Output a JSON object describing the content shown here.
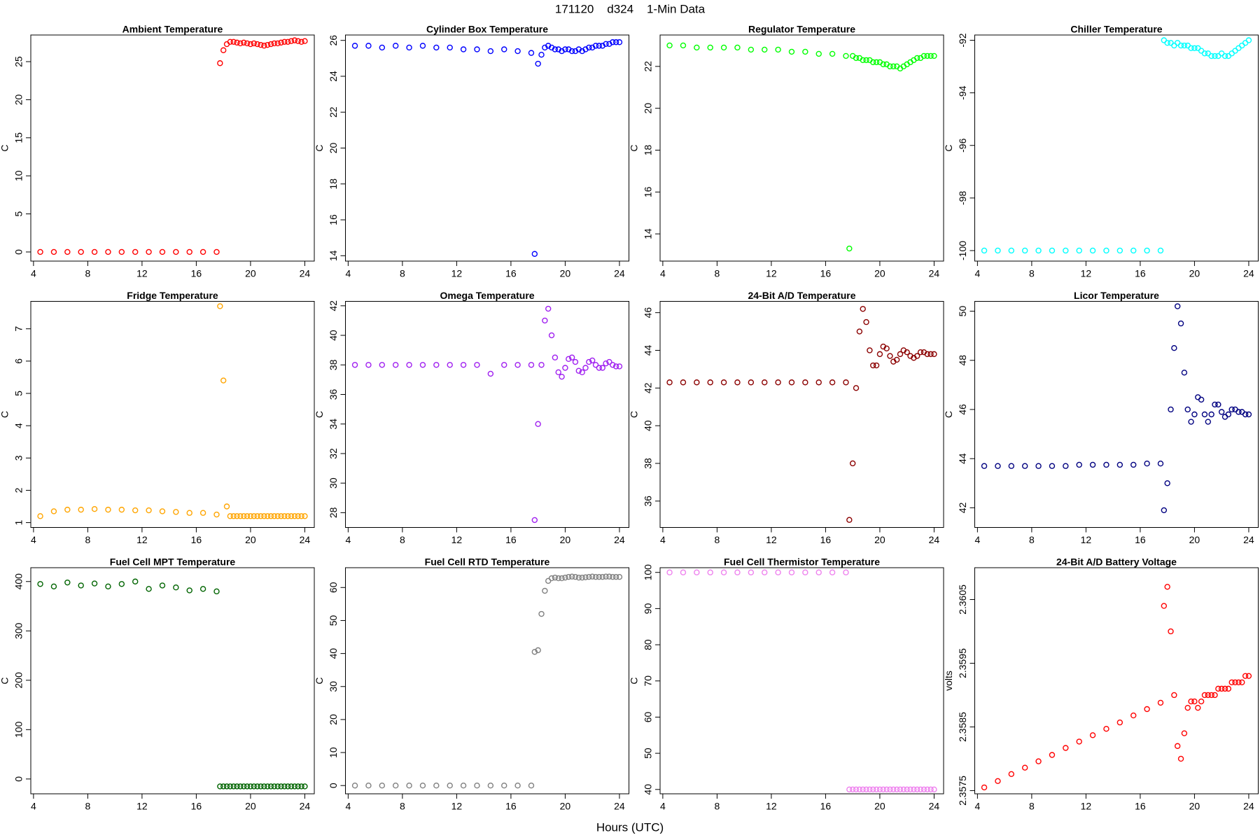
{
  "title": "171120    d324    1-Min Data",
  "x_label": "Hours (UTC)",
  "chart_data": [
    {
      "type": "scatter",
      "title": "Ambient Temperature",
      "ylabel": "C",
      "color": "#ff0000",
      "x": [
        4.5,
        5.5,
        6.5,
        7.5,
        8.5,
        9.5,
        10.5,
        11.5,
        12.5,
        13.5,
        14.5,
        15.5,
        16.5,
        17.5,
        17.75,
        18,
        18.25,
        18.5,
        18.75,
        19,
        19.25,
        19.5,
        19.75,
        20,
        20.25,
        20.5,
        20.75,
        21,
        21.25,
        21.5,
        21.75,
        22,
        22.25,
        22.5,
        22.75,
        23,
        23.25,
        23.5,
        23.75,
        24
      ],
      "values": [
        0,
        0,
        0,
        0,
        0,
        0,
        0,
        0,
        0,
        0,
        0,
        0,
        0,
        0,
        24.8,
        26.5,
        27.3,
        27.6,
        27.6,
        27.5,
        27.4,
        27.5,
        27.4,
        27.3,
        27.4,
        27.3,
        27.2,
        27.1,
        27.2,
        27.3,
        27.4,
        27.4,
        27.5,
        27.6,
        27.6,
        27.7,
        27.8,
        27.7,
        27.6,
        27.7
      ],
      "xlim": [
        3.8,
        24.7
      ],
      "xticks": [
        4,
        8,
        12,
        16,
        20,
        24
      ],
      "ylim": [
        -1.2,
        28.5
      ],
      "yticks": [
        0,
        5,
        10,
        15,
        20,
        25
      ]
    },
    {
      "type": "scatter",
      "title": "Cylinder Box Temperature",
      "ylabel": "C",
      "color": "#0000ff",
      "x": [
        4.5,
        5.5,
        6.5,
        7.5,
        8.5,
        9.5,
        10.5,
        11.5,
        12.5,
        13.5,
        14.5,
        15.5,
        16.5,
        17.5,
        17.75,
        18,
        18.25,
        18.5,
        18.75,
        19,
        19.25,
        19.5,
        19.75,
        20,
        20.25,
        20.5,
        20.75,
        21,
        21.25,
        21.5,
        21.75,
        22,
        22.25,
        22.5,
        22.75,
        23,
        23.25,
        23.5,
        23.75,
        24
      ],
      "values": [
        25.7,
        25.7,
        25.6,
        25.7,
        25.6,
        25.7,
        25.6,
        25.6,
        25.5,
        25.5,
        25.4,
        25.5,
        25.4,
        25.3,
        14.1,
        24.7,
        25.2,
        25.6,
        25.7,
        25.6,
        25.5,
        25.5,
        25.4,
        25.5,
        25.5,
        25.4,
        25.4,
        25.5,
        25.4,
        25.5,
        25.6,
        25.6,
        25.7,
        25.7,
        25.7,
        25.8,
        25.8,
        25.9,
        25.9,
        25.9
      ],
      "xlim": [
        3.8,
        24.7
      ],
      "xticks": [
        4,
        8,
        12,
        16,
        20,
        24
      ],
      "ylim": [
        13.7,
        26.3
      ],
      "yticks": [
        14,
        16,
        18,
        20,
        22,
        24,
        26
      ]
    },
    {
      "type": "scatter",
      "title": "Regulator Temperature",
      "ylabel": "C",
      "color": "#00ff00",
      "x": [
        4.5,
        5.5,
        6.5,
        7.5,
        8.5,
        9.5,
        10.5,
        11.5,
        12.5,
        13.5,
        14.5,
        15.5,
        16.5,
        17.5,
        17.75,
        18,
        18.25,
        18.5,
        18.75,
        19,
        19.25,
        19.5,
        19.75,
        20,
        20.25,
        20.5,
        20.75,
        21,
        21.25,
        21.5,
        21.75,
        22,
        22.25,
        22.5,
        22.75,
        23,
        23.25,
        23.5,
        23.75,
        24
      ],
      "values": [
        23.0,
        23.0,
        22.9,
        22.9,
        22.9,
        22.9,
        22.8,
        22.8,
        22.8,
        22.7,
        22.7,
        22.6,
        22.6,
        22.5,
        13.3,
        22.5,
        22.4,
        22.4,
        22.3,
        22.3,
        22.3,
        22.2,
        22.2,
        22.2,
        22.1,
        22.1,
        22.0,
        22.0,
        22.0,
        21.9,
        22.0,
        22.1,
        22.2,
        22.3,
        22.4,
        22.4,
        22.5,
        22.5,
        22.5,
        22.5
      ],
      "xlim": [
        3.8,
        24.7
      ],
      "xticks": [
        4,
        8,
        12,
        16,
        20,
        24
      ],
      "ylim": [
        12.7,
        23.5
      ],
      "yticks": [
        14,
        16,
        18,
        20,
        22
      ]
    },
    {
      "type": "scatter",
      "title": "Chiller Temperature",
      "ylabel": "C",
      "color": "#00ffff",
      "x": [
        4.5,
        5.5,
        6.5,
        7.5,
        8.5,
        9.5,
        10.5,
        11.5,
        12.5,
        13.5,
        14.5,
        15.5,
        16.5,
        17.5,
        17.75,
        18,
        18.25,
        18.5,
        18.75,
        19,
        19.25,
        19.5,
        19.75,
        20,
        20.25,
        20.5,
        20.75,
        21,
        21.25,
        21.5,
        21.75,
        22,
        22.25,
        22.5,
        22.75,
        23,
        23.25,
        23.5,
        23.75,
        24
      ],
      "values": [
        -100,
        -100,
        -100,
        -100,
        -100,
        -100,
        -100,
        -100,
        -100,
        -100,
        -100,
        -100,
        -100,
        -100,
        -92.0,
        -92.1,
        -92.1,
        -92.2,
        -92.1,
        -92.2,
        -92.2,
        -92.2,
        -92.3,
        -92.3,
        -92.3,
        -92.4,
        -92.5,
        -92.5,
        -92.6,
        -92.6,
        -92.6,
        -92.5,
        -92.6,
        -92.6,
        -92.5,
        -92.4,
        -92.3,
        -92.2,
        -92.1,
        -92.0
      ],
      "xlim": [
        3.8,
        24.7
      ],
      "xticks": [
        4,
        8,
        12,
        16,
        20,
        24
      ],
      "ylim": [
        -100.4,
        -91.8
      ],
      "yticks": [
        -100,
        -98,
        -96,
        -94,
        -92
      ]
    },
    {
      "type": "scatter",
      "title": "Fridge Temperature",
      "ylabel": "C",
      "color": "#ffa500",
      "x": [
        4.5,
        5.5,
        6.5,
        7.5,
        8.5,
        9.5,
        10.5,
        11.5,
        12.5,
        13.5,
        14.5,
        15.5,
        16.5,
        17.5,
        17.75,
        18,
        18.25,
        18.5,
        18.75,
        19,
        19.25,
        19.5,
        19.75,
        20,
        20.25,
        20.5,
        20.75,
        21,
        21.25,
        21.5,
        21.75,
        22,
        22.25,
        22.5,
        22.75,
        23,
        23.25,
        23.5,
        23.75,
        24
      ],
      "values": [
        1.2,
        1.35,
        1.4,
        1.4,
        1.42,
        1.4,
        1.4,
        1.38,
        1.38,
        1.35,
        1.33,
        1.3,
        1.3,
        1.25,
        7.7,
        5.4,
        1.5,
        1.2,
        1.2,
        1.2,
        1.2,
        1.2,
        1.2,
        1.2,
        1.2,
        1.2,
        1.2,
        1.2,
        1.2,
        1.2,
        1.2,
        1.2,
        1.2,
        1.2,
        1.2,
        1.2,
        1.2,
        1.2,
        1.2,
        1.2
      ],
      "xlim": [
        3.8,
        24.7
      ],
      "xticks": [
        4,
        8,
        12,
        16,
        20,
        24
      ],
      "ylim": [
        0.85,
        7.85
      ],
      "yticks": [
        1,
        2,
        3,
        4,
        5,
        6,
        7
      ]
    },
    {
      "type": "scatter",
      "title": "Omega Temperature",
      "ylabel": "C",
      "color": "#a020f0",
      "x": [
        4.5,
        5.5,
        6.5,
        7.5,
        8.5,
        9.5,
        10.5,
        11.5,
        12.5,
        13.5,
        14.5,
        15.5,
        16.5,
        17.5,
        17.75,
        18,
        18.25,
        18.5,
        18.75,
        19,
        19.25,
        19.5,
        19.75,
        20,
        20.25,
        20.5,
        20.75,
        21,
        21.25,
        21.5,
        21.75,
        22,
        22.25,
        22.5,
        22.75,
        23,
        23.25,
        23.5,
        23.75,
        24
      ],
      "values": [
        38.0,
        38.0,
        38.0,
        38.0,
        38.0,
        38.0,
        38.0,
        38.0,
        38.0,
        38.0,
        37.4,
        38.0,
        38.0,
        38.0,
        27.5,
        34.0,
        38.0,
        41.0,
        41.8,
        40.0,
        38.5,
        37.5,
        37.2,
        37.8,
        38.4,
        38.5,
        38.2,
        37.6,
        37.5,
        37.8,
        38.2,
        38.3,
        38.0,
        37.8,
        37.8,
        38.1,
        38.2,
        38.0,
        37.9,
        37.9
      ],
      "xlim": [
        3.8,
        24.7
      ],
      "xticks": [
        4,
        8,
        12,
        16,
        20,
        24
      ],
      "ylim": [
        27.0,
        42.3
      ],
      "yticks": [
        28,
        30,
        32,
        34,
        36,
        38,
        40,
        42
      ]
    },
    {
      "type": "scatter",
      "title": "24-Bit A/D Temperature",
      "ylabel": "C",
      "color": "#8b0000",
      "x": [
        4.5,
        5.5,
        6.5,
        7.5,
        8.5,
        9.5,
        10.5,
        11.5,
        12.5,
        13.5,
        14.5,
        15.5,
        16.5,
        17.5,
        17.75,
        18,
        18.25,
        18.5,
        18.75,
        19,
        19.25,
        19.5,
        19.75,
        20,
        20.25,
        20.5,
        20.75,
        21,
        21.25,
        21.5,
        21.75,
        22,
        22.25,
        22.5,
        22.75,
        23,
        23.25,
        23.5,
        23.75,
        24
      ],
      "values": [
        42.3,
        42.3,
        42.3,
        42.3,
        42.3,
        42.3,
        42.3,
        42.3,
        42.3,
        42.3,
        42.3,
        42.3,
        42.3,
        42.3,
        35.0,
        38.0,
        42.0,
        45.0,
        46.2,
        45.5,
        44.0,
        43.2,
        43.2,
        43.8,
        44.2,
        44.1,
        43.7,
        43.4,
        43.5,
        43.8,
        44.0,
        43.9,
        43.7,
        43.6,
        43.7,
        43.9,
        43.9,
        43.8,
        43.8,
        43.8
      ],
      "xlim": [
        3.8,
        24.7
      ],
      "xticks": [
        4,
        8,
        12,
        16,
        20,
        24
      ],
      "ylim": [
        34.6,
        46.6
      ],
      "yticks": [
        36,
        38,
        40,
        42,
        44,
        46
      ]
    },
    {
      "type": "scatter",
      "title": "Licor Temperature",
      "ylabel": "C",
      "color": "#000080",
      "x": [
        4.5,
        5.5,
        6.5,
        7.5,
        8.5,
        9.5,
        10.5,
        11.5,
        12.5,
        13.5,
        14.5,
        15.5,
        16.5,
        17.5,
        17.75,
        18,
        18.25,
        18.5,
        18.75,
        19,
        19.25,
        19.5,
        19.75,
        20,
        20.25,
        20.5,
        20.75,
        21,
        21.25,
        21.5,
        21.75,
        22,
        22.25,
        22.5,
        22.75,
        23,
        23.25,
        23.5,
        23.75,
        24
      ],
      "values": [
        43.7,
        43.7,
        43.7,
        43.7,
        43.7,
        43.7,
        43.7,
        43.75,
        43.75,
        43.75,
        43.75,
        43.75,
        43.8,
        43.8,
        41.9,
        43.0,
        46.0,
        48.5,
        50.2,
        49.5,
        47.5,
        46.0,
        45.5,
        45.8,
        46.5,
        46.4,
        45.8,
        45.5,
        45.8,
        46.2,
        46.2,
        45.9,
        45.7,
        45.8,
        46.0,
        46.0,
        45.9,
        45.9,
        45.8,
        45.8
      ],
      "xlim": [
        3.8,
        24.7
      ],
      "xticks": [
        4,
        8,
        12,
        16,
        20,
        24
      ],
      "ylim": [
        41.2,
        50.4
      ],
      "yticks": [
        42,
        44,
        46,
        48,
        50
      ]
    },
    {
      "type": "scatter",
      "title": "Fuel Cell MPT Temperature",
      "ylabel": "C",
      "color": "#006400",
      "x": [
        4.5,
        5.5,
        6.5,
        7.5,
        8.5,
        9.5,
        10.5,
        11.5,
        12.5,
        13.5,
        14.5,
        15.5,
        16.5,
        17.5,
        17.75,
        18,
        18.25,
        18.5,
        18.75,
        19,
        19.25,
        19.5,
        19.75,
        20,
        20.25,
        20.5,
        20.75,
        21,
        21.25,
        21.5,
        21.75,
        22,
        22.25,
        22.5,
        22.75,
        23,
        23.25,
        23.5,
        23.75,
        24
      ],
      "values": [
        395,
        390,
        398,
        392,
        396,
        390,
        395,
        400,
        385,
        392,
        388,
        382,
        385,
        380,
        -15,
        -15,
        -15,
        -15,
        -15,
        -15,
        -15,
        -15,
        -15,
        -15,
        -15,
        -15,
        -15,
        -15,
        -15,
        -15,
        -15,
        -15,
        -15,
        -15,
        -15,
        -15,
        -15,
        -15,
        -15,
        -15
      ],
      "xlim": [
        3.8,
        24.7
      ],
      "xticks": [
        4,
        8,
        12,
        16,
        20,
        24
      ],
      "ylim": [
        -30,
        428
      ],
      "yticks": [
        0,
        100,
        200,
        300,
        400
      ]
    },
    {
      "type": "scatter",
      "title": "Fuel Cell RTD Temperature",
      "ylabel": "C",
      "color": "#808080",
      "x": [
        4.5,
        5.5,
        6.5,
        7.5,
        8.5,
        9.5,
        10.5,
        11.5,
        12.5,
        13.5,
        14.5,
        15.5,
        16.5,
        17.5,
        17.75,
        18,
        18.25,
        18.5,
        18.75,
        19,
        19.25,
        19.5,
        19.75,
        20,
        20.25,
        20.5,
        20.75,
        21,
        21.25,
        21.5,
        21.75,
        22,
        22.25,
        22.5,
        22.75,
        23,
        23.25,
        23.5,
        23.75,
        24
      ],
      "values": [
        0,
        0,
        0,
        0,
        0,
        0,
        0,
        0,
        0,
        0,
        0,
        0,
        0,
        0,
        40.5,
        41,
        52,
        59,
        62,
        62.8,
        63,
        62.8,
        62.8,
        63,
        63.2,
        63.3,
        63.2,
        63.0,
        63.0,
        63.1,
        63.2,
        63.3,
        63.2,
        63.2,
        63.2,
        63.3,
        63.3,
        63.2,
        63.2,
        63.2
      ],
      "xlim": [
        3.8,
        24.7
      ],
      "xticks": [
        4,
        8,
        12,
        16,
        20,
        24
      ],
      "ylim": [
        -2.5,
        66
      ],
      "yticks": [
        0,
        10,
        20,
        30,
        40,
        50,
        60
      ]
    },
    {
      "type": "scatter",
      "title": "Fuel Cell Thermistor Temperature",
      "ylabel": "C",
      "color": "#ee82ee",
      "x": [
        4.5,
        5.5,
        6.5,
        7.5,
        8.5,
        9.5,
        10.5,
        11.5,
        12.5,
        13.5,
        14.5,
        15.5,
        16.5,
        17.5,
        17.75,
        18,
        18.25,
        18.5,
        18.75,
        19,
        19.25,
        19.5,
        19.75,
        20,
        20.25,
        20.5,
        20.75,
        21,
        21.25,
        21.5,
        21.75,
        22,
        22.25,
        22.5,
        22.75,
        23,
        23.25,
        23.5,
        23.75,
        24
      ],
      "values": [
        100,
        100,
        100,
        100,
        100,
        100,
        100,
        100,
        100,
        100,
        100,
        100,
        100,
        100,
        40,
        40,
        40,
        40,
        40,
        40,
        40,
        40,
        40,
        40,
        40,
        40,
        40,
        40,
        40,
        40,
        40,
        40,
        40,
        40,
        40,
        40,
        40,
        40,
        40,
        40
      ],
      "xlim": [
        3.8,
        24.7
      ],
      "xticks": [
        4,
        8,
        12,
        16,
        20,
        24
      ],
      "ylim": [
        38.8,
        101.3
      ],
      "yticks": [
        40,
        50,
        60,
        70,
        80,
        90,
        100
      ]
    },
    {
      "type": "scatter",
      "title": "24-Bit A/D Battery Voltage",
      "ylabel": "volts",
      "color": "#ff0000",
      "x": [
        4.5,
        5.5,
        6.5,
        7.5,
        8.5,
        9.5,
        10.5,
        11.5,
        12.5,
        13.5,
        14.5,
        15.5,
        16.5,
        17.5,
        17.75,
        18,
        18.25,
        18.5,
        18.75,
        19,
        19.25,
        19.5,
        19.75,
        20,
        20.25,
        20.5,
        20.75,
        21,
        21.25,
        21.5,
        21.75,
        22,
        22.25,
        22.5,
        22.75,
        23,
        23.25,
        23.5,
        23.75,
        24
      ],
      "values": [
        2.35755,
        2.35765,
        2.35776,
        2.35786,
        2.35796,
        2.35806,
        2.35817,
        2.35827,
        2.35837,
        2.35847,
        2.35857,
        2.35868,
        2.35878,
        2.35888,
        2.3604,
        2.3607,
        2.36,
        2.359,
        2.3582,
        2.358,
        2.3584,
        2.3588,
        2.3589,
        2.3589,
        2.3588,
        2.3589,
        2.359,
        2.359,
        2.359,
        2.359,
        2.3591,
        2.3591,
        2.3591,
        2.3591,
        2.3592,
        2.3592,
        2.3592,
        2.3592,
        2.3593,
        2.3593
      ],
      "xlim": [
        3.8,
        24.7
      ],
      "xticks": [
        4,
        8,
        12,
        16,
        20,
        24
      ],
      "ylim": [
        2.35745,
        2.361
      ],
      "yticks": [
        2.3575,
        2.3585,
        2.3595,
        2.3605
      ]
    }
  ]
}
